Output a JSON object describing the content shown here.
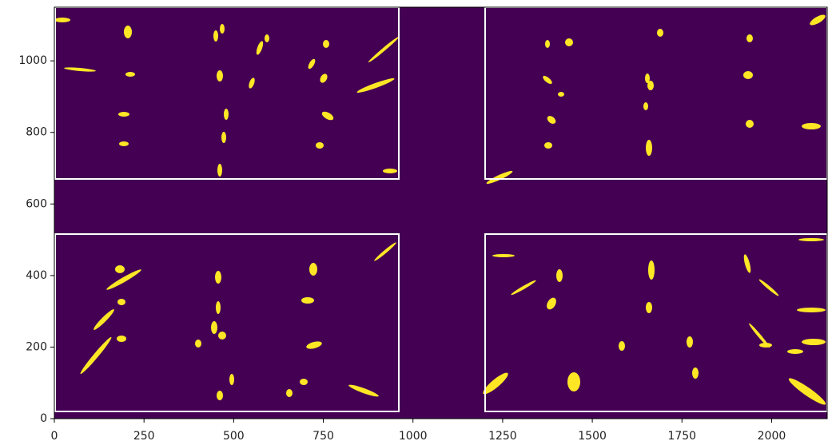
{
  "chart_data": {
    "type": "image",
    "xlim": [
      0,
      2155
    ],
    "ylim": [
      0,
      1150
    ],
    "xticks": [
      0,
      250,
      500,
      750,
      1000,
      1250,
      1500,
      1750,
      2000
    ],
    "yticks": [
      0,
      200,
      400,
      600,
      800,
      1000
    ],
    "background": "#440154",
    "color": "#fde725"
  }
}
